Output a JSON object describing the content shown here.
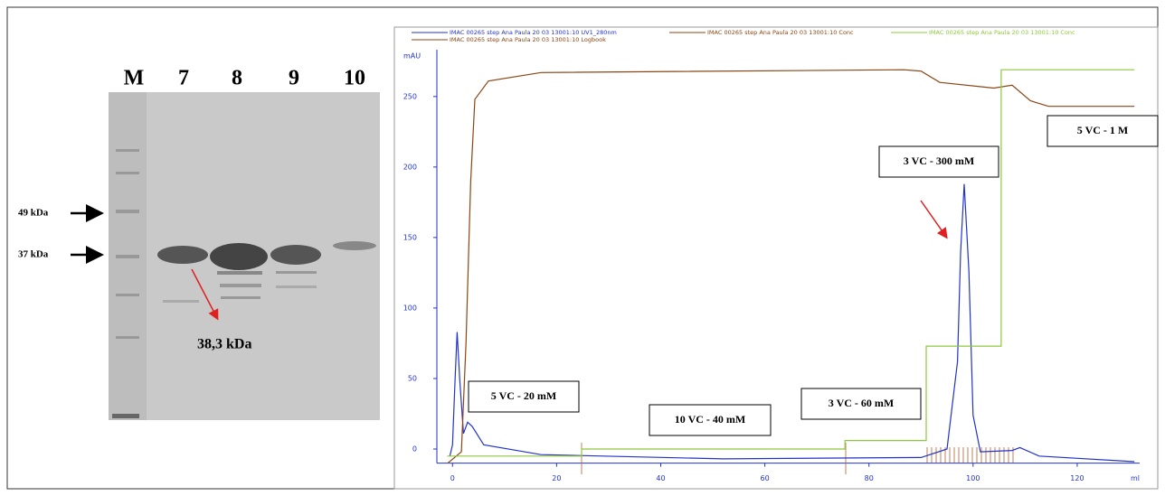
{
  "gel": {
    "lanes": [
      "M",
      "7",
      "8",
      "9",
      "10"
    ],
    "markers": [
      "49 kDa",
      "37 kDa"
    ],
    "band_label": "38,3 kDa"
  },
  "chart_data": {
    "type": "line",
    "y_label": "mAU",
    "x_label": "ml",
    "xlim": [
      -3,
      132
    ],
    "ylim": [
      -10,
      280
    ],
    "xticks": [
      0,
      20,
      40,
      60,
      80,
      100,
      120
    ],
    "yticks": [
      0,
      50,
      100,
      150,
      200,
      250
    ],
    "series": [
      {
        "name": "IMAC 00265 step Ana Paula 20 03 13001:10 UV1_280nm",
        "color": "#2233cc",
        "x": [
          -0.5,
          0,
          0.5,
          0.9,
          1.4,
          2.1,
          2.9,
          3.8,
          6,
          17,
          52,
          90,
          95,
          97,
          97.6,
          98.3,
          99.2,
          100,
          101.4,
          107.5,
          109,
          112.7,
          131
        ],
        "values": [
          -5,
          3,
          49,
          83,
          49,
          11,
          19,
          16,
          3,
          -4,
          -7,
          -6,
          0,
          62,
          139,
          188,
          126,
          24,
          -2,
          -1,
          1,
          -5,
          -9
        ]
      },
      {
        "name": "IMAC 00265 step Ana Paula 20 03 13001:10 Conc",
        "color": "#8b4513",
        "x": [
          -0.9,
          1.7,
          2.6,
          3.5,
          4.3,
          6.9,
          17,
          86.7,
          90,
          93.6,
          104,
          107.5,
          111,
          114.5,
          131
        ],
        "values": [
          -10,
          -2,
          75,
          190,
          248,
          261,
          267,
          269,
          268,
          260,
          256,
          258,
          247,
          243,
          243
        ]
      },
      {
        "name": "IMAC 00265 step Ana Paula 20 03 13001:10 Conc",
        "color": "#8cc83c",
        "x": [
          -1,
          24.8,
          24.8,
          75.4,
          75.4,
          91,
          91,
          105.4,
          105.4,
          131
        ],
        "values": [
          -5,
          -5,
          0,
          0,
          6,
          6,
          73,
          73,
          269,
          269
        ]
      }
    ],
    "logbook": "IMAC 00265 step Ana Paula 20 03 13001:10 Logbook",
    "annotations": [
      "5 VC - 20 mM",
      "10 VC - 40 mM",
      "3 VC - 60 mM",
      "3 VC - 300 mM",
      "5 VC - 1 M"
    ]
  }
}
